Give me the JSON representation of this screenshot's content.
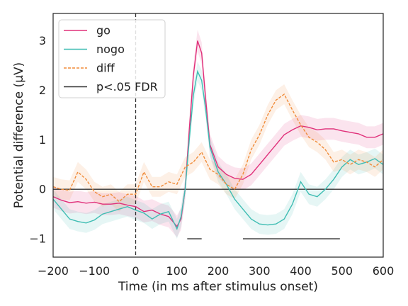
{
  "chart_data": {
    "type": "line",
    "xlabel": "Time (in ms after stimulus onset)",
    "ylabel": "Potential difference (μV)",
    "xlim": [
      -200,
      600
    ],
    "ylim": [
      -1.37,
      3.55
    ],
    "xticks": [
      -200,
      -100,
      0,
      100,
      200,
      300,
      400,
      500,
      600
    ],
    "yticks": [
      -1,
      0,
      1,
      2,
      3
    ],
    "xtick_labels": [
      "−200",
      "−100",
      "0",
      "100",
      "200",
      "300",
      "400",
      "500",
      "600"
    ],
    "ytick_labels": [
      "−1",
      "0",
      "1",
      "2",
      "3"
    ],
    "grid": false,
    "legend_position": "top-left",
    "stimulus_onset_line_x": 0,
    "zero_line_y": 0,
    "series": [
      {
        "name": "go",
        "color": "#e0307a",
        "style": "solid",
        "ci_width": 0.22,
        "x": [
          -200,
          -180,
          -160,
          -140,
          -120,
          -100,
          -80,
          -60,
          -40,
          -20,
          0,
          20,
          40,
          60,
          80,
          100,
          110,
          120,
          130,
          140,
          150,
          160,
          170,
          180,
          200,
          220,
          240,
          260,
          280,
          300,
          320,
          340,
          360,
          380,
          400,
          420,
          440,
          460,
          480,
          500,
          520,
          540,
          560,
          580,
          600
        ],
        "y": [
          -0.15,
          -0.22,
          -0.27,
          -0.25,
          -0.28,
          -0.26,
          -0.3,
          -0.3,
          -0.28,
          -0.32,
          -0.35,
          -0.45,
          -0.42,
          -0.5,
          -0.55,
          -0.75,
          -0.6,
          0.0,
          1.2,
          2.3,
          3.0,
          2.75,
          1.8,
          0.9,
          0.45,
          0.3,
          0.22,
          0.2,
          0.3,
          0.5,
          0.7,
          0.9,
          1.1,
          1.2,
          1.28,
          1.25,
          1.2,
          1.22,
          1.22,
          1.18,
          1.15,
          1.12,
          1.05,
          1.05,
          1.12
        ]
      },
      {
        "name": "nogo",
        "color": "#3fbdb3",
        "style": "solid",
        "ci_width": 0.2,
        "x": [
          -200,
          -180,
          -160,
          -140,
          -120,
          -100,
          -80,
          -60,
          -40,
          -20,
          0,
          20,
          40,
          60,
          80,
          100,
          110,
          120,
          130,
          140,
          150,
          160,
          170,
          180,
          200,
          220,
          240,
          260,
          280,
          300,
          320,
          340,
          360,
          380,
          400,
          420,
          440,
          460,
          480,
          500,
          520,
          540,
          560,
          580,
          600
        ],
        "y": [
          -0.2,
          -0.4,
          -0.6,
          -0.65,
          -0.68,
          -0.62,
          -0.5,
          -0.45,
          -0.4,
          -0.35,
          -0.42,
          -0.48,
          -0.6,
          -0.5,
          -0.45,
          -0.8,
          -0.55,
          0.0,
          1.0,
          1.9,
          2.38,
          2.2,
          1.6,
          0.85,
          0.35,
          0.1,
          -0.2,
          -0.4,
          -0.6,
          -0.7,
          -0.72,
          -0.7,
          -0.6,
          -0.3,
          0.15,
          -0.1,
          -0.15,
          0.0,
          0.2,
          0.45,
          0.6,
          0.5,
          0.55,
          0.62,
          0.5
        ]
      },
      {
        "name": "diff",
        "color": "#f08c3a",
        "style": "dashed",
        "ci_width": 0.2,
        "x": [
          -200,
          -180,
          -160,
          -140,
          -120,
          -100,
          -80,
          -60,
          -40,
          -20,
          0,
          20,
          40,
          60,
          80,
          100,
          120,
          140,
          160,
          180,
          200,
          220,
          240,
          260,
          280,
          300,
          320,
          340,
          360,
          380,
          400,
          420,
          440,
          460,
          480,
          500,
          520,
          540,
          560,
          580,
          600
        ],
        "y": [
          0.05,
          0.0,
          -0.02,
          0.35,
          0.2,
          -0.05,
          -0.15,
          -0.1,
          -0.25,
          -0.1,
          -0.1,
          0.35,
          0.05,
          0.05,
          0.15,
          0.1,
          0.45,
          0.55,
          0.75,
          0.4,
          0.3,
          0.1,
          0.0,
          0.3,
          0.8,
          1.1,
          1.5,
          1.8,
          1.92,
          1.6,
          1.3,
          1.05,
          0.95,
          0.8,
          0.55,
          0.6,
          0.5,
          0.6,
          0.55,
          0.45,
          0.6
        ]
      }
    ],
    "significance": {
      "name": "p<.05 FDR",
      "color": "#333333",
      "y": -1.0,
      "segments": [
        [
          125,
          160
        ],
        [
          260,
          495
        ]
      ]
    }
  }
}
